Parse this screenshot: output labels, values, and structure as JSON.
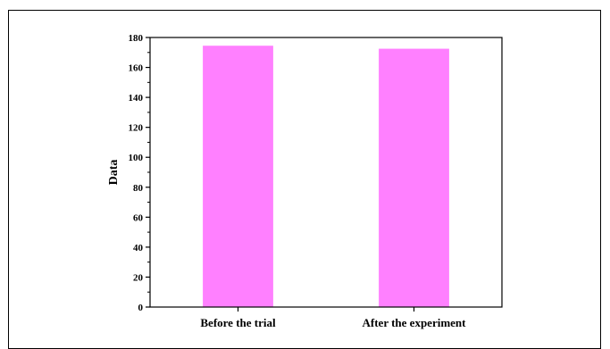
{
  "chart_data": {
    "type": "bar",
    "categories": [
      "Before the trial",
      "After the experiment"
    ],
    "values": [
      174.5,
      172.5
    ],
    "title": "",
    "xlabel": "",
    "ylabel": "Data",
    "ylim": [
      0,
      180
    ],
    "yticks": [
      0,
      20,
      40,
      60,
      80,
      100,
      120,
      140,
      160,
      180
    ],
    "grid": false,
    "legend": "none",
    "bar_color": "#ff80ff"
  }
}
